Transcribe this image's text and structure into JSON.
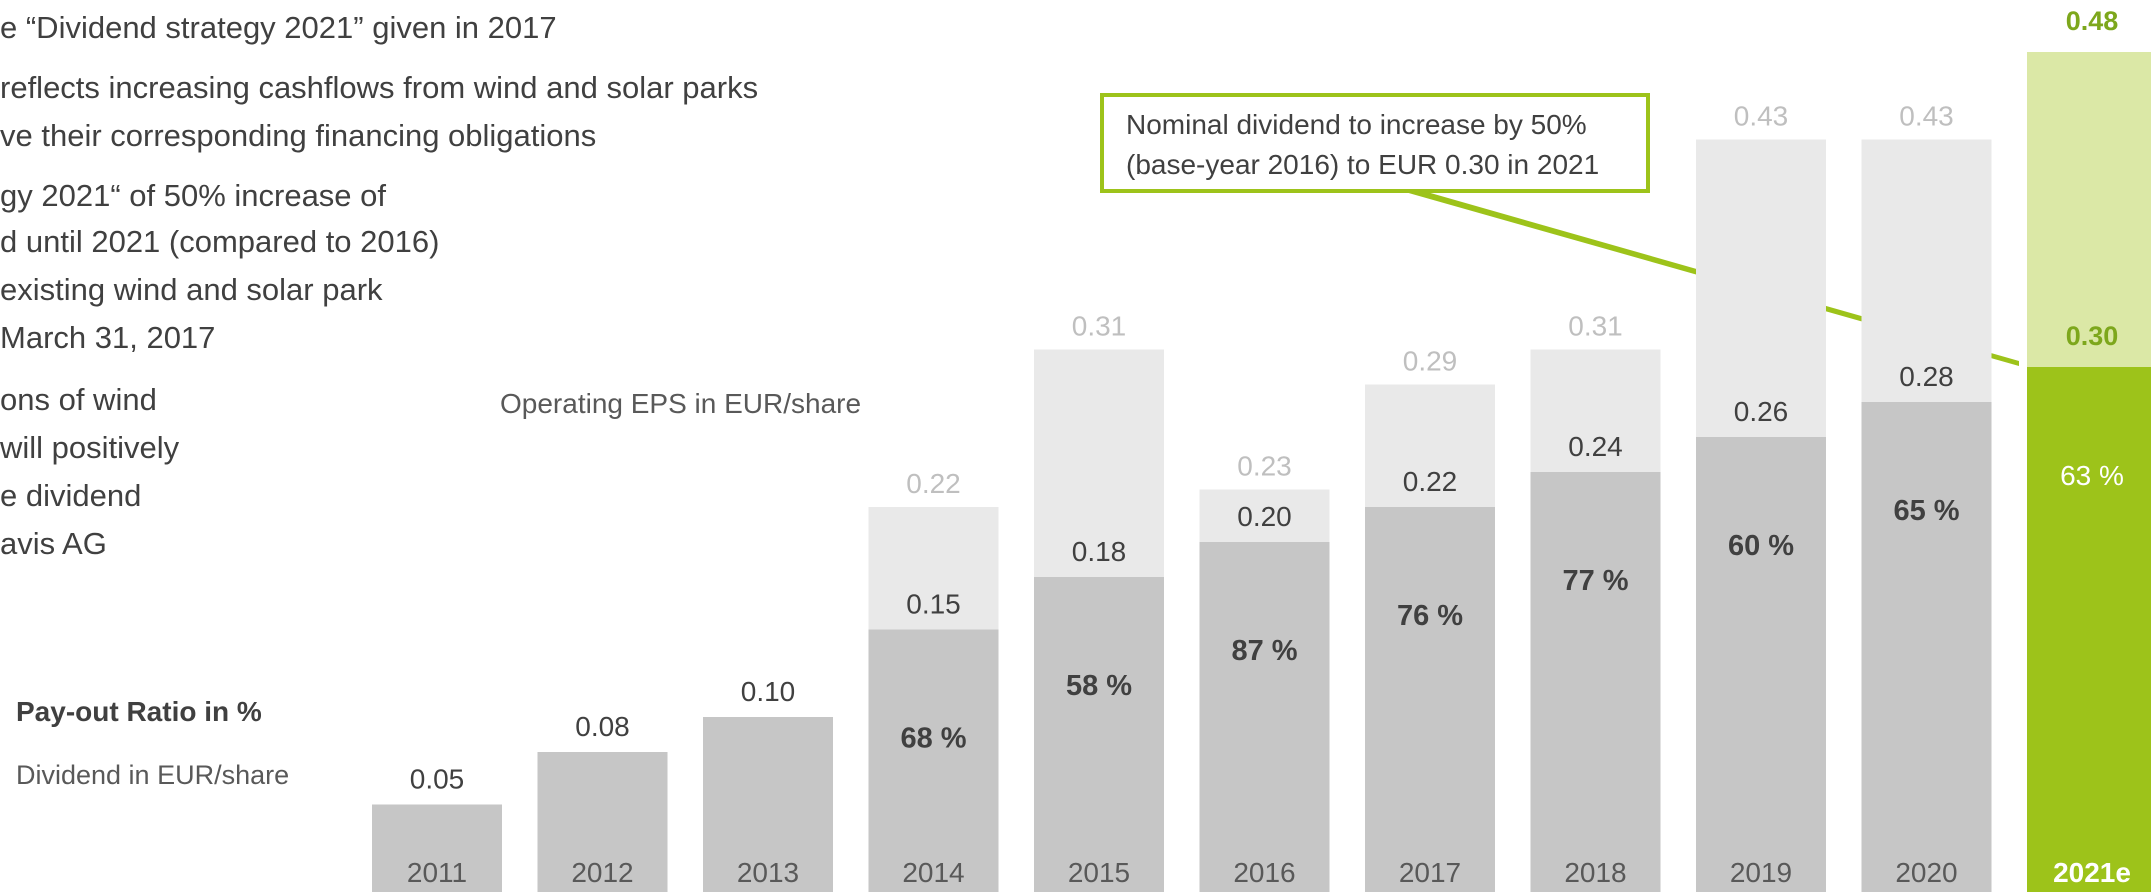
{
  "bullets": [
    "e “Dividend strategy 2021” given in 2017",
    "reflects increasing cashflows from wind and solar parks",
    "ve their corresponding financing obligations",
    "gy 2021“ of 50% increase of",
    "d until 2021 (compared to 2016)",
    "existing wind and solar park",
    "March 31, 2017",
    "ons of wind",
    "will positively",
    "e dividend",
    "avis AG"
  ],
  "legend": {
    "payout_label": "Pay-out Ratio in %",
    "dividend_label": "Dividend in EUR/share"
  },
  "eps_label": "Operating EPS in EUR/share",
  "annotation": {
    "line1": "Nominal dividend to increase by 50%",
    "line2": "(base-year 2016) to EUR 0.30 in 2021"
  },
  "colors": {
    "dividend_bar": "#c6c6c6",
    "eps_bar": "#e9e9e9",
    "forecast_dividend": "#9dc31a",
    "forecast_eps": "#dbe8a6",
    "accent": "#9dc31a"
  },
  "chart_data": {
    "type": "bar",
    "categories": [
      "2011",
      "2012",
      "2013",
      "2014",
      "2015",
      "2016",
      "2017",
      "2018",
      "2019",
      "2020",
      "2021e"
    ],
    "series": [
      {
        "name": "Dividend in EUR/share",
        "values": [
          0.05,
          0.08,
          0.1,
          0.15,
          0.18,
          0.2,
          0.22,
          0.24,
          0.26,
          0.28,
          0.3
        ],
        "labels": [
          "0.05",
          "0.08",
          "0.10",
          "0.15",
          "0.18",
          "0.20",
          "0.22",
          "0.24",
          "0.26",
          "0.28",
          "0.30"
        ]
      },
      {
        "name": "Operating EPS in EUR/share",
        "values": [
          null,
          null,
          null,
          0.22,
          0.31,
          0.23,
          0.29,
          0.31,
          0.43,
          0.43,
          0.48
        ],
        "labels": [
          "",
          "",
          "",
          "0.22",
          "0.31",
          "0.23",
          "0.29",
          "0.31",
          "0.43",
          "0.43",
          "0.48"
        ]
      },
      {
        "name": "Pay-out Ratio in %",
        "values": [
          null,
          null,
          null,
          68,
          58,
          87,
          76,
          77,
          60,
          65,
          63
        ],
        "labels": [
          "",
          "",
          "",
          "68 %",
          "58 %",
          "87 %",
          "76 %",
          "77 %",
          "60 %",
          "65 %",
          "63 %"
        ]
      }
    ],
    "ylim": [
      0,
      0.48
    ]
  }
}
